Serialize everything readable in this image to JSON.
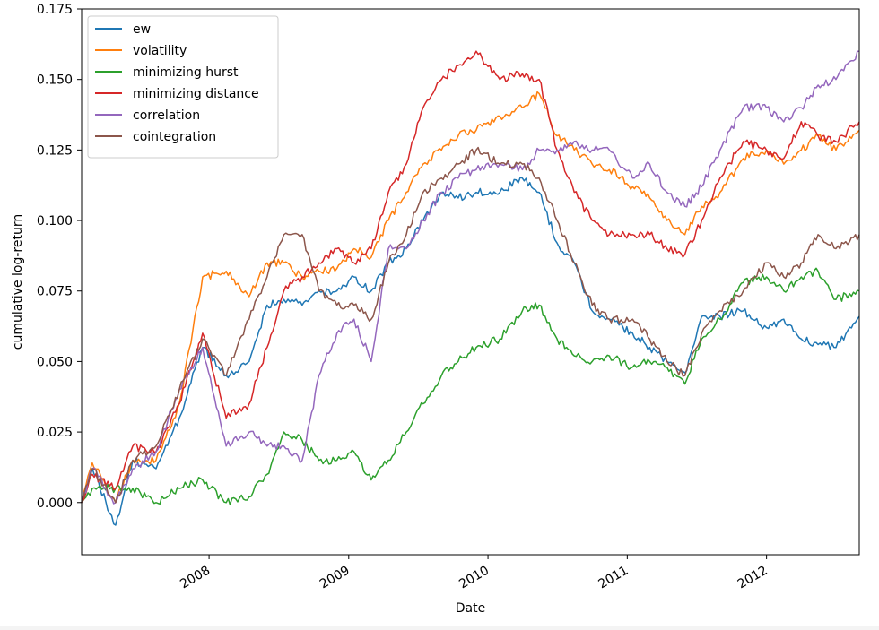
{
  "chart_data": {
    "type": "line",
    "title": "",
    "xlabel": "Date",
    "ylabel": "cumulative log-return",
    "xlim": [
      "2007-02-01",
      "2012-08-31"
    ],
    "ylim": [
      -0.0185,
      0.175
    ],
    "x_ticks": [
      {
        "date": "2008-01-01",
        "label": "2008"
      },
      {
        "date": "2009-01-01",
        "label": "2009"
      },
      {
        "date": "2010-01-01",
        "label": "2010"
      },
      {
        "date": "2011-01-01",
        "label": "2011"
      },
      {
        "date": "2012-01-01",
        "label": "2012"
      }
    ],
    "y_ticks": [
      {
        "value": 0.0,
        "label": "0.000"
      },
      {
        "value": 0.025,
        "label": "0.025"
      },
      {
        "value": 0.05,
        "label": "0.050"
      },
      {
        "value": 0.075,
        "label": "0.075"
      },
      {
        "value": 0.1,
        "label": "0.100"
      },
      {
        "value": 0.125,
        "label": "0.125"
      },
      {
        "value": 0.15,
        "label": "0.150"
      },
      {
        "value": 0.175,
        "label": "0.175"
      }
    ],
    "legend_position": "top-left",
    "grid": false,
    "series": [
      {
        "name": "ew",
        "color": "#1f77b4",
        "points": [
          [
            "2007-02-01",
            0.0
          ],
          [
            "2007-03-01",
            0.012
          ],
          [
            "2007-05-01",
            -0.008
          ],
          [
            "2007-06-15",
            0.015
          ],
          [
            "2007-08-15",
            0.012
          ],
          [
            "2007-10-15",
            0.03
          ],
          [
            "2007-12-15",
            0.055
          ],
          [
            "2008-02-15",
            0.045
          ],
          [
            "2008-04-15",
            0.05
          ],
          [
            "2008-06-01",
            0.07
          ],
          [
            "2008-07-15",
            0.072
          ],
          [
            "2008-09-01",
            0.07
          ],
          [
            "2008-10-15",
            0.075
          ],
          [
            "2008-12-01",
            0.075
          ],
          [
            "2009-01-15",
            0.08
          ],
          [
            "2009-03-01",
            0.075
          ],
          [
            "2009-04-15",
            0.085
          ],
          [
            "2009-06-01",
            0.09
          ],
          [
            "2009-07-15",
            0.1
          ],
          [
            "2009-09-01",
            0.11
          ],
          [
            "2009-10-15",
            0.108
          ],
          [
            "2009-12-01",
            0.11
          ],
          [
            "2010-02-01",
            0.11
          ],
          [
            "2010-04-01",
            0.115
          ],
          [
            "2010-05-15",
            0.11
          ],
          [
            "2010-07-01",
            0.092
          ],
          [
            "2010-08-15",
            0.085
          ],
          [
            "2010-10-01",
            0.068
          ],
          [
            "2010-11-15",
            0.065
          ],
          [
            "2011-01-15",
            0.06
          ],
          [
            "2011-03-01",
            0.055
          ],
          [
            "2011-04-15",
            0.05
          ],
          [
            "2011-06-01",
            0.046
          ],
          [
            "2011-07-15",
            0.066
          ],
          [
            "2011-09-01",
            0.066
          ],
          [
            "2011-11-01",
            0.068
          ],
          [
            "2012-01-01",
            0.062
          ],
          [
            "2012-02-15",
            0.065
          ],
          [
            "2012-04-01",
            0.058
          ],
          [
            "2012-05-15",
            0.056
          ],
          [
            "2012-07-01",
            0.055
          ],
          [
            "2012-08-31",
            0.066
          ]
        ]
      },
      {
        "name": "volatility",
        "color": "#ff7f0e",
        "points": [
          [
            "2007-02-01",
            0.0
          ],
          [
            "2007-03-01",
            0.014
          ],
          [
            "2007-05-01",
            0.0
          ],
          [
            "2007-06-15",
            0.015
          ],
          [
            "2007-08-15",
            0.015
          ],
          [
            "2007-10-15",
            0.035
          ],
          [
            "2007-12-15",
            0.08
          ],
          [
            "2008-02-15",
            0.082
          ],
          [
            "2008-04-15",
            0.073
          ],
          [
            "2008-06-01",
            0.085
          ],
          [
            "2008-07-15",
            0.085
          ],
          [
            "2008-09-01",
            0.08
          ],
          [
            "2008-10-15",
            0.082
          ],
          [
            "2008-12-01",
            0.083
          ],
          [
            "2009-01-15",
            0.09
          ],
          [
            "2009-03-01",
            0.087
          ],
          [
            "2009-04-15",
            0.1
          ],
          [
            "2009-06-01",
            0.11
          ],
          [
            "2009-07-15",
            0.12
          ],
          [
            "2009-09-01",
            0.125
          ],
          [
            "2009-10-15",
            0.13
          ],
          [
            "2009-12-01",
            0.132
          ],
          [
            "2010-02-01",
            0.137
          ],
          [
            "2010-04-01",
            0.14
          ],
          [
            "2010-05-15",
            0.145
          ],
          [
            "2010-07-01",
            0.13
          ],
          [
            "2010-08-15",
            0.125
          ],
          [
            "2010-10-01",
            0.12
          ],
          [
            "2010-11-15",
            0.118
          ],
          [
            "2011-01-15",
            0.112
          ],
          [
            "2011-03-01",
            0.108
          ],
          [
            "2011-04-15",
            0.1
          ],
          [
            "2011-06-01",
            0.095
          ],
          [
            "2011-07-15",
            0.105
          ],
          [
            "2011-09-01",
            0.11
          ],
          [
            "2011-11-01",
            0.122
          ],
          [
            "2012-01-01",
            0.125
          ],
          [
            "2012-02-15",
            0.12
          ],
          [
            "2012-04-01",
            0.125
          ],
          [
            "2012-05-15",
            0.13
          ],
          [
            "2012-07-01",
            0.125
          ],
          [
            "2012-08-31",
            0.132
          ]
        ]
      },
      {
        "name": "minimizing hurst",
        "color": "#2ca02c",
        "points": [
          [
            "2007-02-01",
            0.0
          ],
          [
            "2007-03-01",
            0.005
          ],
          [
            "2007-05-01",
            0.005
          ],
          [
            "2007-06-15",
            0.005
          ],
          [
            "2007-08-15",
            0.0
          ],
          [
            "2007-10-15",
            0.005
          ],
          [
            "2007-12-15",
            0.008
          ],
          [
            "2008-02-15",
            0.0
          ],
          [
            "2008-04-15",
            0.002
          ],
          [
            "2008-06-01",
            0.01
          ],
          [
            "2008-07-15",
            0.025
          ],
          [
            "2008-09-01",
            0.022
          ],
          [
            "2008-10-15",
            0.015
          ],
          [
            "2008-12-01",
            0.015
          ],
          [
            "2009-01-15",
            0.018
          ],
          [
            "2009-03-01",
            0.008
          ],
          [
            "2009-04-15",
            0.015
          ],
          [
            "2009-06-01",
            0.025
          ],
          [
            "2009-07-15",
            0.035
          ],
          [
            "2009-09-01",
            0.045
          ],
          [
            "2009-10-15",
            0.05
          ],
          [
            "2009-12-01",
            0.055
          ],
          [
            "2010-02-01",
            0.058
          ],
          [
            "2010-04-01",
            0.068
          ],
          [
            "2010-05-15",
            0.07
          ],
          [
            "2010-07-01",
            0.058
          ],
          [
            "2010-08-15",
            0.052
          ],
          [
            "2010-10-01",
            0.05
          ],
          [
            "2010-11-15",
            0.052
          ],
          [
            "2011-01-15",
            0.048
          ],
          [
            "2011-03-01",
            0.05
          ],
          [
            "2011-04-15",
            0.048
          ],
          [
            "2011-06-01",
            0.042
          ],
          [
            "2011-07-15",
            0.058
          ],
          [
            "2011-09-01",
            0.065
          ],
          [
            "2011-11-01",
            0.078
          ],
          [
            "2012-01-01",
            0.08
          ],
          [
            "2012-02-15",
            0.075
          ],
          [
            "2012-04-01",
            0.08
          ],
          [
            "2012-05-15",
            0.082
          ],
          [
            "2012-07-01",
            0.072
          ],
          [
            "2012-08-31",
            0.075
          ]
        ]
      },
      {
        "name": "minimizing distance",
        "color": "#d62728",
        "points": [
          [
            "2007-02-01",
            0.0
          ],
          [
            "2007-03-01",
            0.01
          ],
          [
            "2007-05-01",
            0.005
          ],
          [
            "2007-06-15",
            0.02
          ],
          [
            "2007-08-15",
            0.018
          ],
          [
            "2007-10-15",
            0.035
          ],
          [
            "2007-12-15",
            0.06
          ],
          [
            "2008-02-15",
            0.03
          ],
          [
            "2008-04-15",
            0.035
          ],
          [
            "2008-06-01",
            0.055
          ],
          [
            "2008-07-15",
            0.075
          ],
          [
            "2008-09-01",
            0.08
          ],
          [
            "2008-10-15",
            0.085
          ],
          [
            "2008-12-01",
            0.09
          ],
          [
            "2009-01-15",
            0.085
          ],
          [
            "2009-03-01",
            0.09
          ],
          [
            "2009-04-15",
            0.11
          ],
          [
            "2009-06-01",
            0.12
          ],
          [
            "2009-07-15",
            0.14
          ],
          [
            "2009-09-01",
            0.15
          ],
          [
            "2009-10-15",
            0.155
          ],
          [
            "2009-12-01",
            0.16
          ],
          [
            "2010-02-01",
            0.15
          ],
          [
            "2010-04-01",
            0.152
          ],
          [
            "2010-05-15",
            0.15
          ],
          [
            "2010-07-01",
            0.125
          ],
          [
            "2010-08-15",
            0.11
          ],
          [
            "2010-10-01",
            0.1
          ],
          [
            "2010-11-15",
            0.095
          ],
          [
            "2011-01-15",
            0.095
          ],
          [
            "2011-03-01",
            0.095
          ],
          [
            "2011-04-15",
            0.09
          ],
          [
            "2011-06-01",
            0.088
          ],
          [
            "2011-07-15",
            0.1
          ],
          [
            "2011-09-01",
            0.115
          ],
          [
            "2011-11-01",
            0.128
          ],
          [
            "2012-01-01",
            0.125
          ],
          [
            "2012-02-15",
            0.122
          ],
          [
            "2012-04-01",
            0.135
          ],
          [
            "2012-05-15",
            0.13
          ],
          [
            "2012-07-01",
            0.128
          ],
          [
            "2012-08-31",
            0.135
          ]
        ]
      },
      {
        "name": "correlation",
        "color": "#9467bd",
        "points": [
          [
            "2007-02-01",
            0.0
          ],
          [
            "2007-03-01",
            0.012
          ],
          [
            "2007-05-01",
            0.0
          ],
          [
            "2007-06-15",
            0.012
          ],
          [
            "2007-08-15",
            0.018
          ],
          [
            "2007-10-15",
            0.04
          ],
          [
            "2007-12-15",
            0.055
          ],
          [
            "2008-02-15",
            0.02
          ],
          [
            "2008-04-15",
            0.025
          ],
          [
            "2008-06-01",
            0.02
          ],
          [
            "2008-07-15",
            0.02
          ],
          [
            "2008-09-01",
            0.015
          ],
          [
            "2008-10-15",
            0.045
          ],
          [
            "2008-12-01",
            0.06
          ],
          [
            "2009-01-15",
            0.065
          ],
          [
            "2009-03-01",
            0.05
          ],
          [
            "2009-04-15",
            0.09
          ],
          [
            "2009-06-01",
            0.09
          ],
          [
            "2009-07-15",
            0.1
          ],
          [
            "2009-09-01",
            0.11
          ],
          [
            "2009-10-15",
            0.115
          ],
          [
            "2009-12-01",
            0.118
          ],
          [
            "2010-02-01",
            0.12
          ],
          [
            "2010-04-01",
            0.118
          ],
          [
            "2010-05-15",
            0.125
          ],
          [
            "2010-07-01",
            0.125
          ],
          [
            "2010-08-15",
            0.128
          ],
          [
            "2010-10-01",
            0.125
          ],
          [
            "2010-11-15",
            0.125
          ],
          [
            "2011-01-15",
            0.115
          ],
          [
            "2011-03-01",
            0.12
          ],
          [
            "2011-04-15",
            0.11
          ],
          [
            "2011-06-01",
            0.105
          ],
          [
            "2011-07-15",
            0.112
          ],
          [
            "2011-09-01",
            0.125
          ],
          [
            "2011-11-01",
            0.14
          ],
          [
            "2012-01-01",
            0.14
          ],
          [
            "2012-02-15",
            0.135
          ],
          [
            "2012-04-01",
            0.14
          ],
          [
            "2012-05-15",
            0.148
          ],
          [
            "2012-07-01",
            0.15
          ],
          [
            "2012-08-31",
            0.16
          ]
        ]
      },
      {
        "name": "cointegration",
        "color": "#8c564b",
        "points": [
          [
            "2007-02-01",
            0.0
          ],
          [
            "2007-03-01",
            0.012
          ],
          [
            "2007-05-01",
            0.0
          ],
          [
            "2007-06-15",
            0.015
          ],
          [
            "2007-08-15",
            0.02
          ],
          [
            "2007-10-15",
            0.04
          ],
          [
            "2007-12-15",
            0.058
          ],
          [
            "2008-02-15",
            0.045
          ],
          [
            "2008-04-15",
            0.065
          ],
          [
            "2008-06-01",
            0.08
          ],
          [
            "2008-07-15",
            0.095
          ],
          [
            "2008-09-01",
            0.095
          ],
          [
            "2008-10-15",
            0.075
          ],
          [
            "2008-12-01",
            0.07
          ],
          [
            "2009-01-15",
            0.07
          ],
          [
            "2009-03-01",
            0.065
          ],
          [
            "2009-04-15",
            0.085
          ],
          [
            "2009-06-01",
            0.095
          ],
          [
            "2009-07-15",
            0.11
          ],
          [
            "2009-09-01",
            0.115
          ],
          [
            "2009-10-15",
            0.12
          ],
          [
            "2009-12-01",
            0.125
          ],
          [
            "2010-02-01",
            0.12
          ],
          [
            "2010-04-01",
            0.12
          ],
          [
            "2010-05-15",
            0.115
          ],
          [
            "2010-07-01",
            0.1
          ],
          [
            "2010-08-15",
            0.085
          ],
          [
            "2010-10-01",
            0.07
          ],
          [
            "2010-11-15",
            0.065
          ],
          [
            "2011-01-15",
            0.065
          ],
          [
            "2011-03-01",
            0.058
          ],
          [
            "2011-04-15",
            0.05
          ],
          [
            "2011-06-01",
            0.045
          ],
          [
            "2011-07-15",
            0.06
          ],
          [
            "2011-09-01",
            0.068
          ],
          [
            "2011-11-01",
            0.075
          ],
          [
            "2012-01-01",
            0.085
          ],
          [
            "2012-02-15",
            0.08
          ],
          [
            "2012-04-01",
            0.085
          ],
          [
            "2012-05-15",
            0.095
          ],
          [
            "2012-07-01",
            0.09
          ],
          [
            "2012-08-31",
            0.095
          ]
        ]
      }
    ]
  }
}
